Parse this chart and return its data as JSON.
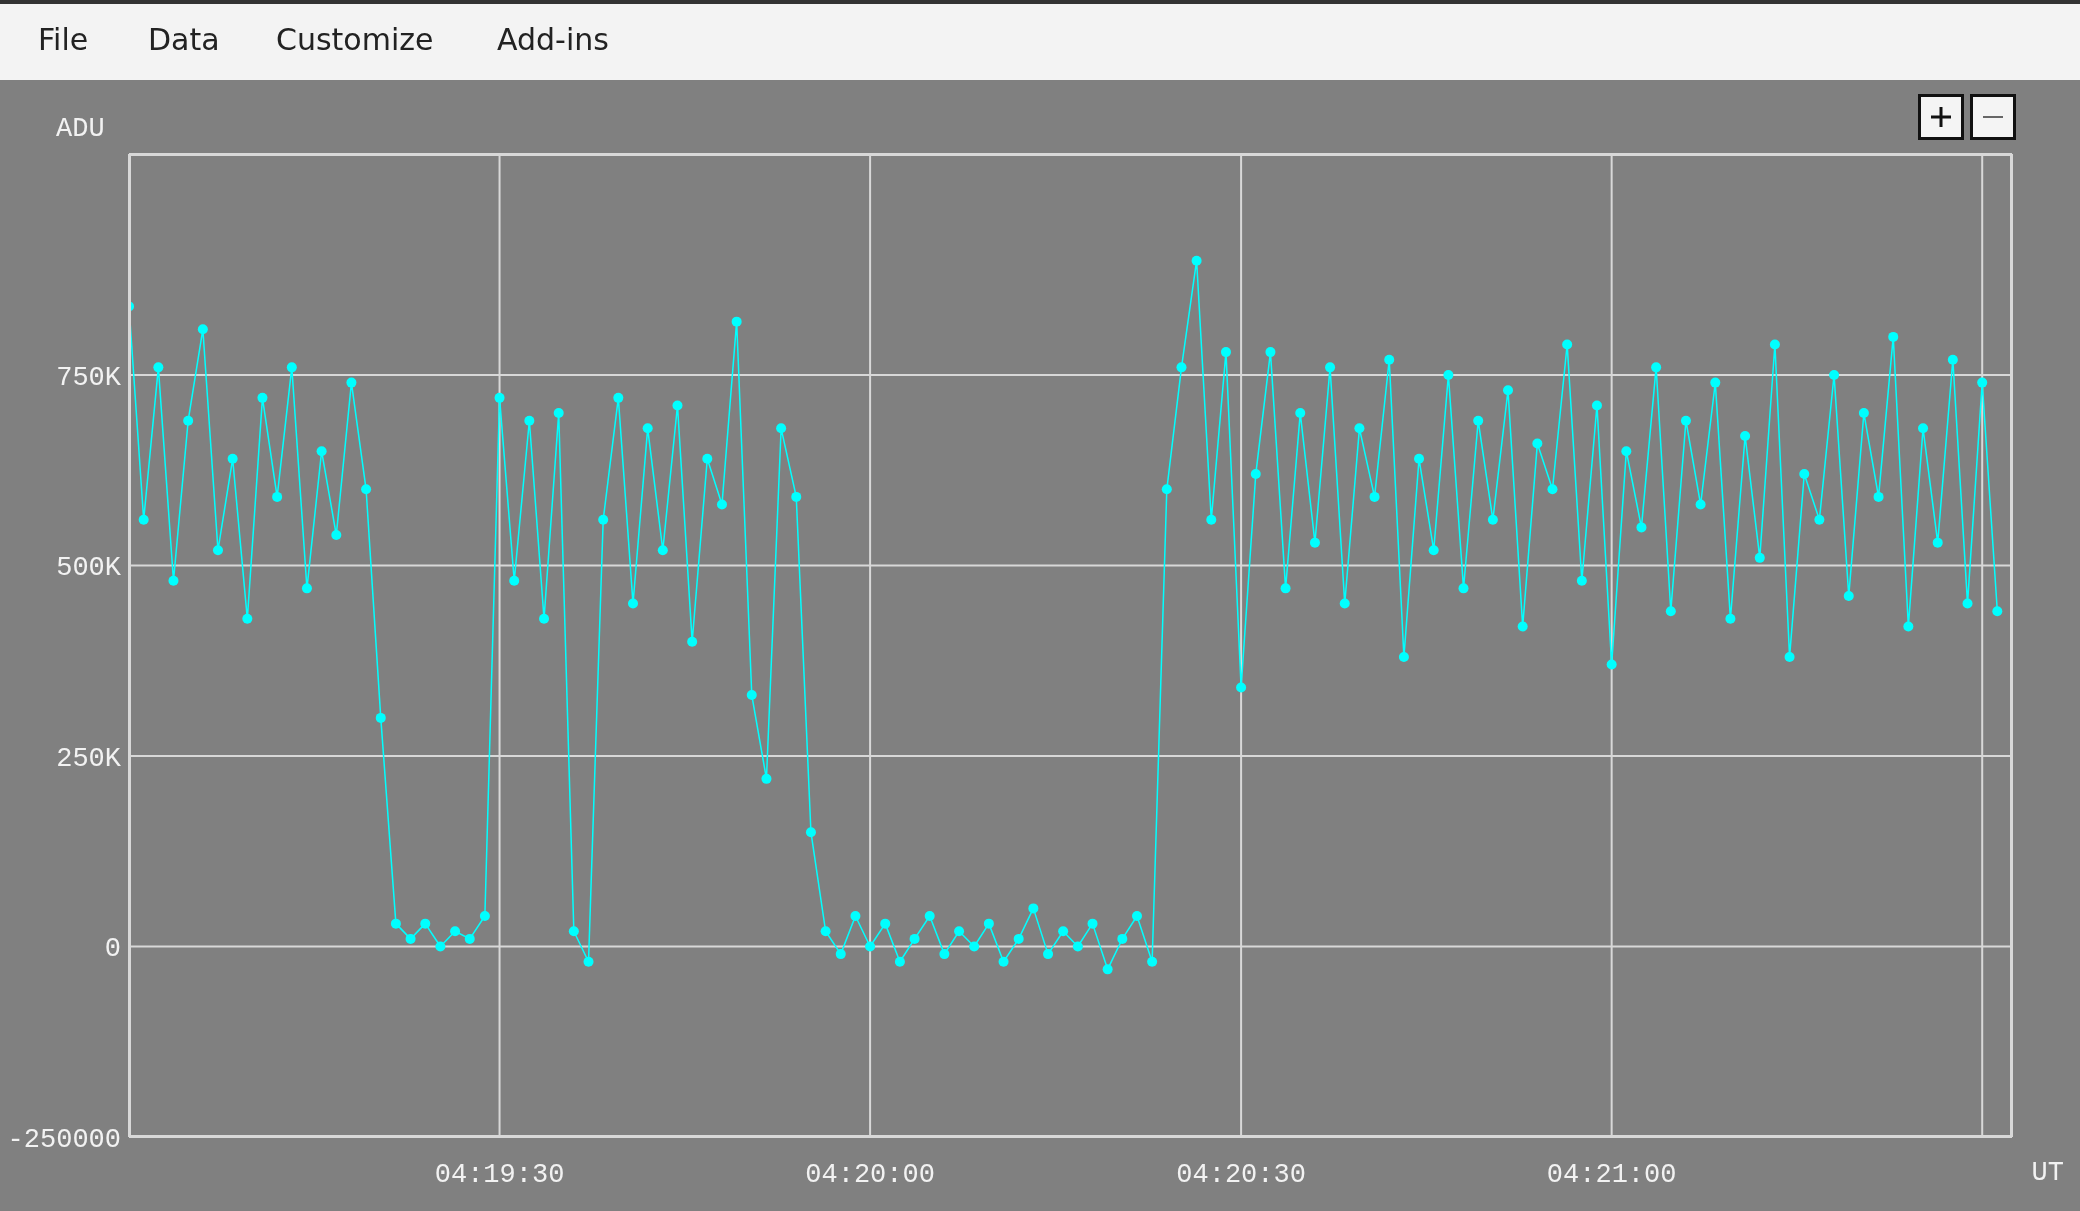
{
  "chart_data": {
    "type": "line",
    "xlabel": "UT",
    "ylabel": "ADU",
    "annotations": [
      "File",
      "Data",
      "Customize",
      "Add-ins"
    ],
    "xlim": [
      4.31667,
      4.359
    ],
    "xticks": [
      {
        "value": 4.325,
        "label": "04:19:30"
      },
      {
        "value": 4.33333,
        "label": "04:20:00"
      },
      {
        "value": 4.34167,
        "label": "04:20:30"
      },
      {
        "value": 4.35,
        "label": "04:21:00"
      },
      {
        "value": 4.35833,
        "label": null
      }
    ],
    "ylim": [
      -250000,
      1040000
    ],
    "yticks": [
      -250000,
      0,
      {
        "value": 250000,
        "label": "250K"
      },
      {
        "value": 500000,
        "label": "500K"
      },
      {
        "value": 750000,
        "label": "750K"
      }
    ],
    "grid": true,
    "marker": "circle",
    "x": [
      4.31667,
      4.317,
      4.31733,
      4.31767,
      4.318,
      4.31833,
      4.31867,
      4.319,
      4.31933,
      4.31967,
      4.32,
      4.32033,
      4.32067,
      4.321,
      4.32133,
      4.32167,
      4.322,
      4.32233,
      4.32267,
      4.323,
      4.32333,
      4.32367,
      4.324,
      4.32433,
      4.32467,
      4.325,
      4.32533,
      4.32567,
      4.326,
      4.32633,
      4.32667,
      4.327,
      4.32733,
      4.32767,
      4.328,
      4.32833,
      4.32867,
      4.329,
      4.32933,
      4.32967,
      4.33,
      4.33033,
      4.33067,
      4.331,
      4.33133,
      4.33167,
      4.332,
      4.33233,
      4.33267,
      4.333,
      4.33333,
      4.33367,
      4.334,
      4.33433,
      4.33467,
      4.335,
      4.33533,
      4.33567,
      4.336,
      4.33633,
      4.33667,
      4.337,
      4.33733,
      4.33767,
      4.338,
      4.33833,
      4.33867,
      4.339,
      4.33933,
      4.33967,
      4.34,
      4.34033,
      4.34067,
      4.341,
      4.34133,
      4.34167,
      4.342,
      4.34233,
      4.34267,
      4.343,
      4.34333,
      4.34367,
      4.344,
      4.34433,
      4.34467,
      4.345,
      4.34533,
      4.34567,
      4.346,
      4.34633,
      4.34667,
      4.347,
      4.34733,
      4.34767,
      4.348,
      4.34833,
      4.34867,
      4.349,
      4.34933,
      4.34967,
      4.35,
      4.35033,
      4.35067,
      4.351,
      4.35133,
      4.35167,
      4.352,
      4.35233,
      4.35267,
      4.353,
      4.35333,
      4.35367,
      4.354,
      4.35433,
      4.35467,
      4.355,
      4.35533,
      4.35567,
      4.356,
      4.35633,
      4.35667,
      4.357,
      4.35733,
      4.35767,
      4.358,
      4.35833,
      4.35867
    ],
    "series": [
      {
        "color": "#00ffff",
        "values": [
          840000,
          560000,
          760000,
          480000,
          690000,
          810000,
          520000,
          640000,
          430000,
          720000,
          590000,
          760000,
          470000,
          650000,
          540000,
          740000,
          600000,
          300000,
          30000,
          10000,
          30000,
          0,
          20000,
          10000,
          40000,
          720000,
          480000,
          690000,
          430000,
          700000,
          20000,
          -20000,
          560000,
          720000,
          450000,
          680000,
          520000,
          710000,
          400000,
          640000,
          580000,
          820000,
          330000,
          220000,
          680000,
          590000,
          150000,
          20000,
          -10000,
          40000,
          0,
          30000,
          -20000,
          10000,
          40000,
          -10000,
          20000,
          0,
          30000,
          -20000,
          10000,
          50000,
          -10000,
          20000,
          0,
          30000,
          -30000,
          10000,
          40000,
          -20000,
          600000,
          760000,
          900000,
          560000,
          780000,
          340000,
          620000,
          780000,
          470000,
          700000,
          530000,
          760000,
          450000,
          680000,
          590000,
          770000,
          380000,
          640000,
          520000,
          750000,
          470000,
          690000,
          560000,
          730000,
          420000,
          660000,
          600000,
          790000,
          480000,
          710000,
          370000,
          650000,
          550000,
          760000,
          440000,
          690000,
          580000,
          740000,
          430000,
          670000,
          510000,
          790000,
          380000,
          620000,
          560000,
          750000,
          460000,
          700000,
          590000,
          800000,
          420000,
          680000,
          530000,
          770000,
          450000,
          740000,
          440000
        ]
      }
    ]
  }
}
